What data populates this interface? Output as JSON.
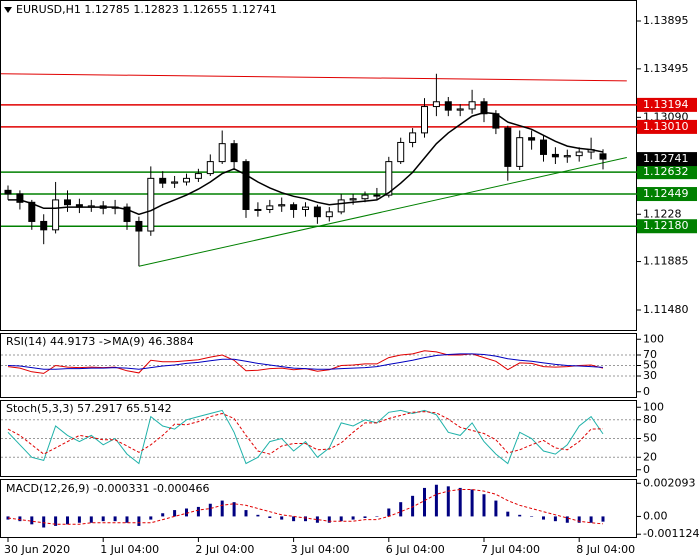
{
  "chart_data": [
    {
      "type": "candlestick",
      "title": "EURUSD,H1  1.12785 1.12823 1.12655 1.12741",
      "categories": [
        "30 Jun 2020",
        null,
        null,
        null,
        null,
        null,
        null,
        null,
        "1 Jul 04:00",
        null,
        null,
        null,
        null,
        null,
        null,
        null,
        "2 Jul 04:00",
        null,
        null,
        null,
        null,
        null,
        null,
        null,
        "3 Jul 04:00",
        null,
        null,
        null,
        null,
        null,
        null,
        null,
        "6 Jul 04:00",
        null,
        null,
        null,
        null,
        null,
        null,
        null,
        "7 Jul 04:00",
        null,
        null,
        null,
        null,
        null,
        null,
        null,
        "8 Jul 04:00",
        null,
        null
      ],
      "candles": [
        [
          1.1248,
          1.1252,
          1.124,
          1.1245
        ],
        [
          1.1245,
          1.1248,
          1.1232,
          1.1238
        ],
        [
          1.1238,
          1.124,
          1.1215,
          1.1222
        ],
        [
          1.1222,
          1.1228,
          1.1203,
          1.1215
        ],
        [
          1.1215,
          1.1255,
          1.1212,
          1.124
        ],
        [
          1.124,
          1.1248,
          1.123,
          1.1236
        ],
        [
          1.1236,
          1.1241,
          1.1229,
          1.1234
        ],
        [
          1.1234,
          1.124,
          1.123,
          1.1235
        ],
        [
          1.1235,
          1.1239,
          1.1228,
          1.1233
        ],
        [
          1.1233,
          1.124,
          1.1228,
          1.1234
        ],
        [
          1.1234,
          1.1237,
          1.1215,
          1.1222
        ],
        [
          1.1222,
          1.1226,
          1.11846,
          1.1214
        ],
        [
          1.1214,
          1.1268,
          1.121,
          1.1258
        ],
        [
          1.1258,
          1.1264,
          1.125,
          1.1254
        ],
        [
          1.1254,
          1.126,
          1.125,
          1.1255
        ],
        [
          1.1255,
          1.1262,
          1.1252,
          1.1258
        ],
        [
          1.1258,
          1.1266,
          1.1255,
          1.1262
        ],
        [
          1.1262,
          1.1278,
          1.126,
          1.1272
        ],
        [
          1.1272,
          1.1298,
          1.127,
          1.1287
        ],
        [
          1.1287,
          1.129,
          1.1265,
          1.1272
        ],
        [
          1.1272,
          1.1274,
          1.1225,
          1.1232
        ],
        [
          1.1232,
          1.1238,
          1.1226,
          1.1232
        ],
        [
          1.1232,
          1.124,
          1.1229,
          1.1235
        ],
        [
          1.1235,
          1.1242,
          1.123,
          1.1236
        ],
        [
          1.1236,
          1.1238,
          1.1225,
          1.1232
        ],
        [
          1.1232,
          1.1238,
          1.1226,
          1.1234
        ],
        [
          1.1234,
          1.1236,
          1.122,
          1.1226
        ],
        [
          1.1226,
          1.1234,
          1.1222,
          1.123
        ],
        [
          1.123,
          1.1245,
          1.1228,
          1.124
        ],
        [
          1.124,
          1.1245,
          1.1236,
          1.1241
        ],
        [
          1.1241,
          1.1247,
          1.1238,
          1.1244
        ],
        [
          1.1244,
          1.125,
          1.124,
          1.1244
        ],
        [
          1.1244,
          1.1276,
          1.1242,
          1.1272
        ],
        [
          1.1272,
          1.1292,
          1.127,
          1.1288
        ],
        [
          1.1288,
          1.13,
          1.1284,
          1.1296
        ],
        [
          1.1296,
          1.1325,
          1.1292,
          1.1318
        ],
        [
          1.1318,
          1.13454,
          1.131,
          1.1322
        ],
        [
          1.1322,
          1.1326,
          1.131,
          1.1315
        ],
        [
          1.1315,
          1.132,
          1.131,
          1.1316
        ],
        [
          1.1316,
          1.1332,
          1.1312,
          1.1322
        ],
        [
          1.1322,
          1.1325,
          1.1305,
          1.1312
        ],
        [
          1.1312,
          1.1315,
          1.1295,
          1.13
        ],
        [
          1.13,
          1.1302,
          1.1256,
          1.1268
        ],
        [
          1.1268,
          1.1298,
          1.1265,
          1.1292
        ],
        [
          1.1292,
          1.1298,
          1.1282,
          1.129
        ],
        [
          1.129,
          1.1294,
          1.1272,
          1.1278
        ],
        [
          1.1278,
          1.1284,
          1.127,
          1.1276
        ],
        [
          1.1276,
          1.1282,
          1.1271,
          1.1277
        ],
        [
          1.1277,
          1.1284,
          1.1272,
          1.128
        ],
        [
          1.128,
          1.1292,
          1.1274,
          1.1282
        ],
        [
          1.12785,
          1.12823,
          1.12655,
          1.12741
        ]
      ],
      "bull_color": "#ffffff",
      "bear_color": "#000000",
      "series": [
        {
          "color": "#000000",
          "values": [
            1.124,
            1.124,
            1.1237,
            1.1233,
            1.1233,
            1.1234,
            1.1234,
            1.1234,
            1.1234,
            1.1234,
            1.1232,
            1.1228,
            1.1231,
            1.1236,
            1.124,
            1.1244,
            1.1249,
            1.1255,
            1.1262,
            1.1266,
            1.1261,
            1.1255,
            1.125,
            1.1246,
            1.1243,
            1.1241,
            1.1238,
            1.1236,
            1.1237,
            1.1238,
            1.1239,
            1.124,
            1.1246,
            1.1254,
            1.1263,
            1.1275,
            1.1287,
            1.1296,
            1.1303,
            1.131,
            1.1313,
            1.1312,
            1.1305,
            1.1302,
            1.1299,
            1.1294,
            1.1289,
            1.1285,
            1.1283,
            1.1282,
            1.128
          ]
        }
      ],
      "ylim": [
        1.11313,
        1.14062
      ],
      "yticks": [
        1.13895,
        1.13495,
        {
          "value": 1.1309,
          "label": "1.13090"
        },
        1.1228,
        1.11885,
        {
          "value": 1.1148,
          "label": "1.11480"
        }
      ],
      "levels": [
        {
          "value": 1.13194,
          "color": "#e00000"
        },
        {
          "value": 1.1301,
          "label": "1.13010",
          "color": "#e00000"
        },
        {
          "value": 1.12632,
          "color": "#008000"
        },
        {
          "value": 1.12449,
          "color": "#008000"
        },
        {
          "value": 1.1218,
          "label": "1.12180",
          "color": "#008000"
        }
      ],
      "current_price": 1.12741,
      "trendlines": [
        {
          "start": [
            0,
            1.13454
          ],
          "end": [
            52,
            1.13395
          ],
          "color": "#e00000"
        },
        {
          "start": [
            11,
            1.11846
          ],
          "end": [
            52,
            1.12754
          ],
          "color": "#008000"
        }
      ]
    },
    {
      "type": "line",
      "title": "RSI(14) 44.9173 ->MA(9) 46.3884",
      "series": [
        {
          "color": "#e00000",
          "values": [
            48,
            45,
            38,
            35,
            50,
            47,
            46,
            47,
            46,
            47,
            40,
            36,
            60,
            57,
            57,
            59,
            61,
            66,
            70,
            60,
            40,
            41,
            44,
            45,
            42,
            44,
            39,
            42,
            50,
            51,
            53,
            53,
            65,
            70,
            72,
            78,
            76,
            70,
            70,
            72,
            65,
            58,
            42,
            55,
            54,
            48,
            47,
            48,
            50,
            51,
            44.9173
          ]
        },
        {
          "color": "#0000c0",
          "values": [
            50,
            49,
            46,
            43,
            43,
            44,
            44,
            45,
            45,
            46,
            45,
            43,
            46,
            49,
            51,
            54,
            56,
            59,
            62,
            62,
            58,
            54,
            51,
            48,
            45,
            44,
            43,
            43,
            44,
            45,
            46,
            48,
            52,
            56,
            60,
            65,
            69,
            71,
            72,
            72,
            71,
            68,
            63,
            60,
            58,
            55,
            52,
            50,
            49,
            48,
            46.3884
          ]
        }
      ],
      "ylim": [
        -10,
        110
      ],
      "yticks": [
        0,
        30,
        50,
        70,
        100
      ],
      "grid": true
    },
    {
      "type": "line",
      "title": "Stoch(5,3,3) 57.2917 65.5142",
      "series": [
        {
          "color": "#20b2aa",
          "values": [
            60,
            40,
            20,
            15,
            70,
            55,
            45,
            55,
            40,
            50,
            25,
            10,
            85,
            70,
            65,
            80,
            85,
            90,
            95,
            60,
            10,
            20,
            45,
            50,
            30,
            45,
            20,
            35,
            75,
            70,
            80,
            75,
            92,
            95,
            90,
            95,
            88,
            60,
            55,
            75,
            45,
            25,
            10,
            60,
            50,
            30,
            25,
            40,
            70,
            85,
            57.2917
          ]
        },
        {
          "color": "#e00000",
          "dashed": true,
          "values": [
            65,
            55,
            40,
            25,
            35,
            45,
            55,
            52,
            48,
            48,
            38,
            28,
            40,
            55,
            73,
            72,
            77,
            85,
            90,
            82,
            55,
            30,
            25,
            38,
            42,
            42,
            32,
            33,
            43,
            60,
            75,
            75,
            82,
            87,
            92,
            93,
            91,
            81,
            68,
            63,
            58,
            48,
            27,
            32,
            40,
            47,
            35,
            32,
            45,
            65,
            65.5142
          ]
        }
      ],
      "ylim": [
        -10,
        110
      ],
      "yticks": [
        0,
        20,
        50,
        80,
        100
      ],
      "grid": true
    },
    {
      "type": "bar",
      "title": "MACD(12,26,9) -0.000331 -0.000466",
      "color": "#000080",
      "values": [
        -0.0002,
        -0.0003,
        -0.0005,
        -0.0007,
        -0.0006,
        -0.0005,
        -0.0004,
        -0.0004,
        -0.0003,
        -0.0003,
        -0.0004,
        -0.0006,
        -0.0002,
        0.0002,
        0.0004,
        0.0005,
        0.0006,
        0.0008,
        0.001,
        0.0009,
        0.0004,
        0.0001,
        -0.0001,
        -0.0002,
        -0.0003,
        -0.0003,
        -0.0004,
        -0.0004,
        -0.0003,
        -0.0002,
        -0.0001,
        0,
        0.0005,
        0.0009,
        0.0013,
        0.0018,
        0.002,
        0.0019,
        0.0018,
        0.0017,
        0.0014,
        0.001,
        0.0003,
        0.0001,
        0,
        -0.0002,
        -0.0003,
        -0.0004,
        -0.0004,
        -0.0004,
        -0.000331
      ],
      "series": [
        {
          "color": "#e00000",
          "dashed": true,
          "values": [
            -0.0001,
            -0.0002,
            -0.0003,
            -0.0004,
            -0.0005,
            -0.0005,
            -0.0005,
            -0.0004,
            -0.0004,
            -0.0004,
            -0.0004,
            -0.0004,
            -0.0004,
            -0.0002,
            0,
            0.0002,
            0.0004,
            0.0005,
            0.0007,
            0.0008,
            0.0007,
            0.0005,
            0.0003,
            0.0001,
            0,
            -0.0001,
            -0.0002,
            -0.0003,
            -0.0003,
            -0.0003,
            -0.0002,
            -0.0002,
            0,
            0.0003,
            0.0006,
            0.001,
            0.0014,
            0.0016,
            0.0017,
            0.0017,
            0.0016,
            0.0014,
            0.001,
            0.0007,
            0.0005,
            0.0003,
            0.0001,
            -0.0001,
            -0.0003,
            -0.0004,
            -0.000466
          ]
        }
      ],
      "ylim": [
        -0.0013,
        0.0023
      ],
      "yticks": [
        0.002093,
        {
          "value": 0,
          "label": "0.00"
        },
        -0.001124
      ]
    }
  ]
}
